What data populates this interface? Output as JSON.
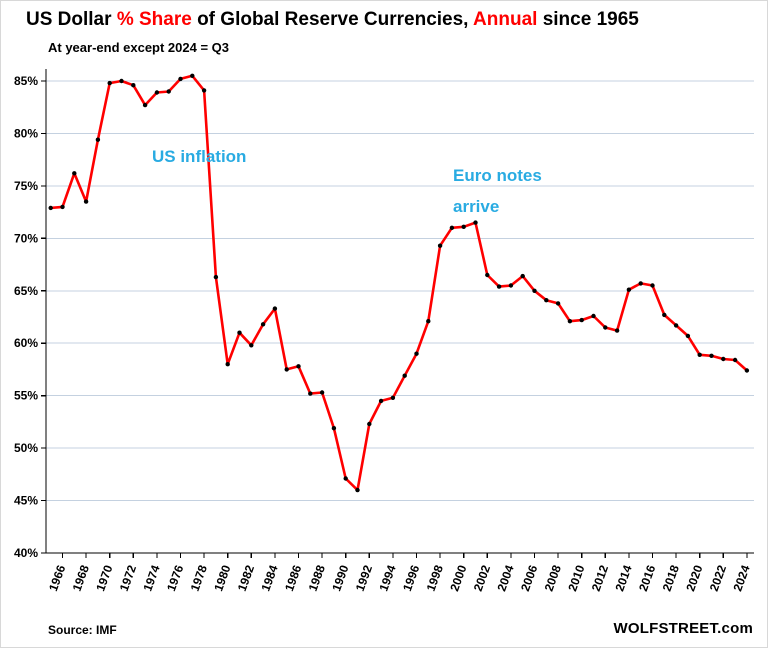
{
  "header": {
    "segments": [
      {
        "text": "US Dollar ",
        "color": "#000000"
      },
      {
        "text": "% Share",
        "color": "#ff0000"
      },
      {
        "text": " of Global Reserve Currencies, ",
        "color": "#000000"
      },
      {
        "text": "Annual",
        "color": "#ff0000"
      },
      {
        "text": " since 1965",
        "color": "#000000"
      }
    ],
    "subtitle": "At year-end except 2024 = Q3"
  },
  "footer": {
    "source": "Source: IMF",
    "brand": "WOLFSTREET.com"
  },
  "colors": {
    "line": "#ff0000",
    "marker": "#000000",
    "grid": "#c4d1e0",
    "axis": "#000000",
    "annotation": "#29abe2",
    "title_accent": "#ff0000"
  },
  "chart_data": {
    "type": "line",
    "title": "US Dollar % Share of Global Reserve Currencies, Annual since 1965",
    "subtitle": "At year-end except 2024 = Q3",
    "source": "Source: IMF",
    "xlabel": "",
    "ylabel": "",
    "ylim": [
      40,
      85
    ],
    "ytick_interval": 5,
    "ylabel_suffix": "%",
    "xtick_start": 1966,
    "xtick_interval": 2,
    "grid": "horizontal",
    "legend": "none",
    "annotations": [
      {
        "id": "us-inflation",
        "text": "US inflation"
      },
      {
        "id": "euro-notes-arrive",
        "lines": [
          "Euro notes",
          "arrive"
        ]
      }
    ],
    "x": [
      1965,
      1966,
      1967,
      1968,
      1969,
      1970,
      1971,
      1972,
      1973,
      1974,
      1975,
      1976,
      1977,
      1978,
      1979,
      1980,
      1981,
      1982,
      1983,
      1984,
      1985,
      1986,
      1987,
      1988,
      1989,
      1990,
      1991,
      1992,
      1993,
      1994,
      1995,
      1996,
      1997,
      1998,
      1999,
      2000,
      2001,
      2002,
      2003,
      2004,
      2005,
      2006,
      2007,
      2008,
      2009,
      2010,
      2011,
      2012,
      2013,
      2014,
      2015,
      2016,
      2017,
      2018,
      2019,
      2020,
      2021,
      2022,
      2023,
      2024
    ],
    "values": [
      72.9,
      73.0,
      76.2,
      73.5,
      79.4,
      84.8,
      85.0,
      84.6,
      82.7,
      83.9,
      84.0,
      85.2,
      85.5,
      84.1,
      66.3,
      58.0,
      61.0,
      59.8,
      61.8,
      63.3,
      57.5,
      57.8,
      55.2,
      55.3,
      51.9,
      47.1,
      46.0,
      52.3,
      54.5,
      54.8,
      56.9,
      59.0,
      62.1,
      69.3,
      71.0,
      71.1,
      71.5,
      66.5,
      65.4,
      65.5,
      66.4,
      65.0,
      64.1,
      63.8,
      62.1,
      62.2,
      62.6,
      61.5,
      61.2,
      65.1,
      65.7,
      65.5,
      62.7,
      61.7,
      60.7,
      58.9,
      58.8,
      58.5,
      58.4,
      57.4
    ]
  }
}
